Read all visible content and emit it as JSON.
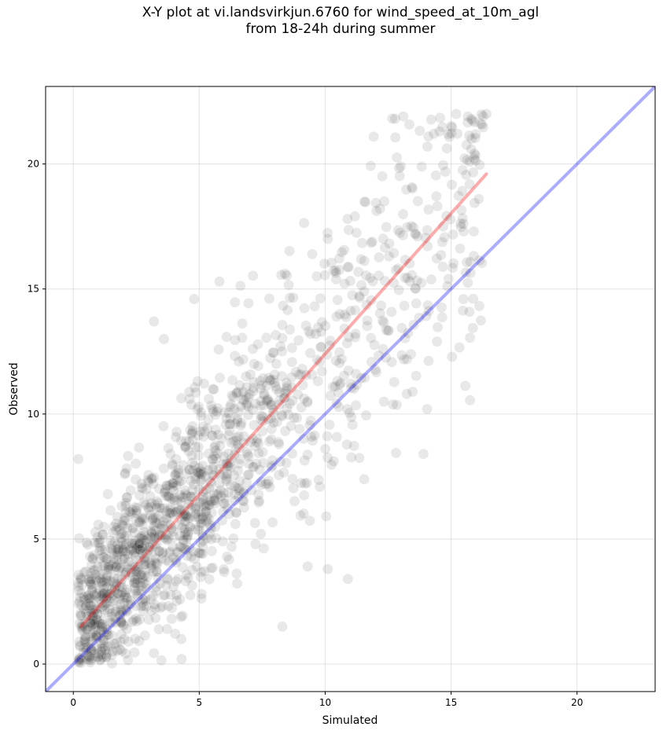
{
  "chart_data": {
    "type": "scatter",
    "title_line1": "X-Y plot at vi.landsvirkjun.6760 for wind_speed_at_10m_agl",
    "title_line2": "from 18-24h during summer",
    "xlabel": "Simulated",
    "ylabel": "Observed",
    "xlim": [
      -1.1,
      23.1
    ],
    "ylim": [
      -1.1,
      23.1
    ],
    "xticks": [
      0,
      5,
      10,
      15,
      20
    ],
    "yticks": [
      0,
      5,
      10,
      15,
      20
    ],
    "grid": true,
    "point_color": "#000000",
    "point_alpha": 0.09,
    "point_count": 1500,
    "identity_line": {
      "color": "#0000ff",
      "alpha": 0.33,
      "from": [
        -1.1,
        -1.1
      ],
      "to": [
        23.1,
        23.1
      ]
    },
    "fit_line": {
      "color": "#ff0000",
      "alpha": 0.33,
      "from": [
        0.3,
        1.5
      ],
      "to": [
        16.4,
        19.6
      ]
    },
    "highlighted_points": [
      [
        15.2,
        22.0
      ],
      [
        13.1,
        21.9
      ],
      [
        15.8,
        21.8
      ],
      [
        14.1,
        21.1
      ],
      [
        16.4,
        22.0
      ],
      [
        0.2,
        8.2
      ],
      [
        5.8,
        15.3
      ],
      [
        3.2,
        13.7
      ],
      [
        3.6,
        13.0
      ],
      [
        4.8,
        14.6
      ],
      [
        10.1,
        3.8
      ],
      [
        10.9,
        3.4
      ],
      [
        8.3,
        1.5
      ],
      [
        9.3,
        3.9
      ],
      [
        4.3,
        0.2
      ],
      [
        12.3,
        12.6
      ],
      [
        13.9,
        8.4
      ],
      [
        15.9,
        17.3
      ],
      [
        15.5,
        17.3
      ],
      [
        16.1,
        18.6
      ]
    ]
  }
}
